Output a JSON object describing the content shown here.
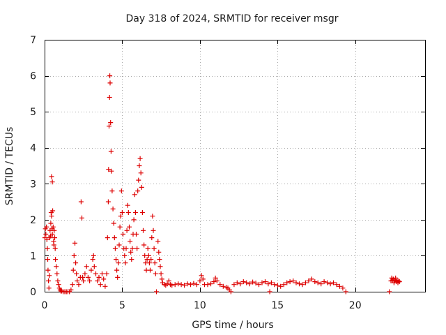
{
  "chart_data": {
    "type": "scatter",
    "title": "Day 318 of 2024, SRMTID for receiver msgr",
    "xlabel": "GPS time / hours",
    "ylabel": "SRMTID / TECUs",
    "xlim": [
      0,
      24.5
    ],
    "ylim": [
      0,
      7
    ],
    "xticks": [
      0,
      5,
      10,
      15,
      20
    ],
    "yticks": [
      0,
      1,
      2,
      3,
      4,
      5,
      6,
      7
    ],
    "grid": true,
    "marker": "+",
    "series": [
      {
        "name": "SRMTID",
        "color": "#dd0000",
        "points": [
          [
            0.02,
            1.5
          ],
          [
            0.05,
            1.75
          ],
          [
            0.08,
            1.6
          ],
          [
            0.12,
            1.8
          ],
          [
            0.15,
            1.45
          ],
          [
            0.18,
            1.2
          ],
          [
            0.2,
            0.9
          ],
          [
            0.22,
            0.6
          ],
          [
            0.25,
            0.3
          ],
          [
            0.28,
            0.1
          ],
          [
            0.3,
            0.45
          ],
          [
            0.33,
            1.5
          ],
          [
            0.35,
            1.7
          ],
          [
            0.38,
            1.55
          ],
          [
            0.4,
            1.9
          ],
          [
            0.42,
            2.2
          ],
          [
            0.45,
            2.1
          ],
          [
            0.48,
            1.75
          ],
          [
            0.5,
            1.6
          ],
          [
            0.52,
            2.25
          ],
          [
            0.55,
            1.8
          ],
          [
            0.58,
            1.4
          ],
          [
            0.6,
            1.3
          ],
          [
            0.62,
            1.7
          ],
          [
            0.65,
            1.5
          ],
          [
            0.68,
            1.2
          ],
          [
            0.45,
            3.2
          ],
          [
            0.5,
            3.05
          ],
          [
            0.7,
            0.9
          ],
          [
            0.75,
            0.7
          ],
          [
            0.8,
            0.5
          ],
          [
            0.85,
            0.3
          ],
          [
            0.9,
            0.2
          ],
          [
            0.95,
            0.1
          ],
          [
            1.0,
            0.05
          ],
          [
            1.05,
            0.02
          ],
          [
            1.1,
            0.02
          ],
          [
            1.2,
            0.0
          ],
          [
            1.3,
            0.0
          ],
          [
            1.4,
            0.0
          ],
          [
            1.5,
            0.0
          ],
          [
            1.6,
            0.0
          ],
          [
            1.7,
            0.05
          ],
          [
            1.8,
            0.2
          ],
          [
            1.85,
            0.6
          ],
          [
            1.9,
            1.0
          ],
          [
            1.95,
            1.35
          ],
          [
            2.0,
            0.8
          ],
          [
            2.05,
            0.5
          ],
          [
            2.1,
            0.3
          ],
          [
            2.2,
            0.2
          ],
          [
            2.3,
            0.4
          ],
          [
            2.35,
            2.5
          ],
          [
            2.4,
            2.05
          ],
          [
            2.45,
            0.4
          ],
          [
            2.5,
            0.3
          ],
          [
            2.6,
            0.5
          ],
          [
            2.7,
            0.7
          ],
          [
            2.8,
            0.4
          ],
          [
            2.9,
            0.3
          ],
          [
            3.0,
            0.6
          ],
          [
            3.1,
            0.9
          ],
          [
            3.15,
            1.0
          ],
          [
            3.2,
            0.7
          ],
          [
            3.3,
            0.5
          ],
          [
            3.4,
            0.3
          ],
          [
            3.5,
            0.4
          ],
          [
            3.6,
            0.2
          ],
          [
            3.7,
            0.5
          ],
          [
            3.8,
            0.35
          ],
          [
            3.9,
            0.15
          ],
          [
            4.0,
            0.5
          ],
          [
            4.05,
            1.5
          ],
          [
            4.1,
            2.5
          ],
          [
            4.12,
            3.4
          ],
          [
            4.15,
            4.6
          ],
          [
            4.18,
            5.4
          ],
          [
            4.2,
            6.0
          ],
          [
            4.22,
            5.8
          ],
          [
            4.25,
            4.7
          ],
          [
            4.28,
            3.9
          ],
          [
            4.3,
            3.35
          ],
          [
            4.35,
            2.8
          ],
          [
            4.4,
            2.3
          ],
          [
            4.45,
            1.9
          ],
          [
            4.5,
            1.5
          ],
          [
            4.55,
            1.2
          ],
          [
            4.6,
            0.9
          ],
          [
            4.65,
            0.6
          ],
          [
            4.7,
            0.4
          ],
          [
            4.75,
            0.8
          ],
          [
            4.8,
            1.3
          ],
          [
            4.85,
            1.8
          ],
          [
            4.9,
            2.1
          ],
          [
            4.95,
            2.8
          ],
          [
            5.0,
            2.2
          ],
          [
            5.05,
            1.6
          ],
          [
            5.1,
            1.2
          ],
          [
            5.15,
            1.0
          ],
          [
            5.2,
            0.8
          ],
          [
            5.25,
            1.2
          ],
          [
            5.3,
            1.7
          ],
          [
            5.35,
            2.4
          ],
          [
            5.4,
            2.2
          ],
          [
            5.45,
            1.8
          ],
          [
            5.5,
            1.4
          ],
          [
            5.55,
            1.1
          ],
          [
            5.6,
            0.9
          ],
          [
            5.65,
            1.2
          ],
          [
            5.7,
            1.6
          ],
          [
            5.75,
            2.0
          ],
          [
            5.8,
            2.7
          ],
          [
            5.85,
            2.2
          ],
          [
            5.9,
            1.6
          ],
          [
            5.95,
            1.2
          ],
          [
            6.0,
            2.8
          ],
          [
            6.05,
            3.1
          ],
          [
            6.1,
            3.5
          ],
          [
            6.15,
            3.7
          ],
          [
            6.2,
            3.3
          ],
          [
            6.25,
            2.9
          ],
          [
            6.3,
            2.2
          ],
          [
            6.35,
            1.7
          ],
          [
            6.4,
            1.3
          ],
          [
            6.45,
            1.0
          ],
          [
            6.5,
            0.8
          ],
          [
            6.55,
            0.6
          ],
          [
            6.6,
            0.9
          ],
          [
            6.65,
            1.2
          ],
          [
            6.7,
            1.0
          ],
          [
            6.75,
            0.8
          ],
          [
            6.8,
            0.6
          ],
          [
            6.85,
            0.9
          ],
          [
            6.9,
            1.5
          ],
          [
            6.95,
            2.1
          ],
          [
            7.0,
            1.7
          ],
          [
            7.05,
            1.2
          ],
          [
            7.1,
            0.8
          ],
          [
            7.15,
            0.5
          ],
          [
            7.2,
            0.0
          ],
          [
            7.3,
            1.4
          ],
          [
            7.35,
            1.1
          ],
          [
            7.4,
            0.9
          ],
          [
            7.45,
            0.7
          ],
          [
            7.5,
            0.5
          ],
          [
            7.55,
            0.35
          ],
          [
            7.6,
            0.25
          ],
          [
            7.7,
            0.2
          ],
          [
            7.8,
            0.18
          ],
          [
            7.9,
            0.22
          ],
          [
            8.0,
            0.3
          ],
          [
            8.1,
            0.2
          ],
          [
            8.2,
            0.18
          ],
          [
            8.4,
            0.2
          ],
          [
            8.6,
            0.22
          ],
          [
            8.8,
            0.2
          ],
          [
            9.0,
            0.18
          ],
          [
            9.2,
            0.22
          ],
          [
            9.4,
            0.2
          ],
          [
            9.6,
            0.23
          ],
          [
            9.8,
            0.2
          ],
          [
            10.0,
            0.3
          ],
          [
            10.1,
            0.45
          ],
          [
            10.2,
            0.35
          ],
          [
            10.3,
            0.2
          ],
          [
            10.5,
            0.2
          ],
          [
            10.7,
            0.22
          ],
          [
            10.9,
            0.28
          ],
          [
            11.0,
            0.38
          ],
          [
            11.1,
            0.3
          ],
          [
            11.3,
            0.2
          ],
          [
            11.5,
            0.15
          ],
          [
            11.7,
            0.12
          ],
          [
            11.8,
            0.1
          ],
          [
            11.9,
            0.05
          ],
          [
            12.0,
            0.0
          ],
          [
            12.2,
            0.2
          ],
          [
            12.4,
            0.25
          ],
          [
            12.6,
            0.22
          ],
          [
            12.8,
            0.28
          ],
          [
            13.0,
            0.25
          ],
          [
            13.2,
            0.22
          ],
          [
            13.4,
            0.27
          ],
          [
            13.6,
            0.24
          ],
          [
            13.8,
            0.2
          ],
          [
            14.0,
            0.25
          ],
          [
            14.2,
            0.28
          ],
          [
            14.4,
            0.22
          ],
          [
            14.5,
            0.0
          ],
          [
            14.6,
            0.25
          ],
          [
            14.8,
            0.2
          ],
          [
            15.0,
            0.18
          ],
          [
            15.2,
            0.15
          ],
          [
            15.4,
            0.2
          ],
          [
            15.6,
            0.25
          ],
          [
            15.8,
            0.28
          ],
          [
            16.0,
            0.3
          ],
          [
            16.2,
            0.25
          ],
          [
            16.4,
            0.22
          ],
          [
            16.6,
            0.2
          ],
          [
            16.8,
            0.25
          ],
          [
            17.0,
            0.3
          ],
          [
            17.2,
            0.35
          ],
          [
            17.4,
            0.28
          ],
          [
            17.6,
            0.25
          ],
          [
            17.8,
            0.22
          ],
          [
            18.0,
            0.28
          ],
          [
            18.2,
            0.25
          ],
          [
            18.4,
            0.22
          ],
          [
            18.6,
            0.25
          ],
          [
            18.8,
            0.2
          ],
          [
            19.0,
            0.15
          ],
          [
            19.2,
            0.1
          ],
          [
            19.4,
            0.0
          ],
          [
            22.2,
            0.0
          ],
          [
            22.3,
            0.3
          ],
          [
            22.35,
            0.38
          ],
          [
            22.4,
            0.32
          ],
          [
            22.45,
            0.35
          ],
          [
            22.5,
            0.25
          ],
          [
            22.55,
            0.3
          ],
          [
            22.6,
            0.38
          ],
          [
            22.65,
            0.28
          ],
          [
            22.7,
            0.32
          ],
          [
            22.75,
            0.25
          ],
          [
            22.8,
            0.3
          ],
          [
            22.85,
            0.28
          ]
        ]
      }
    ]
  }
}
